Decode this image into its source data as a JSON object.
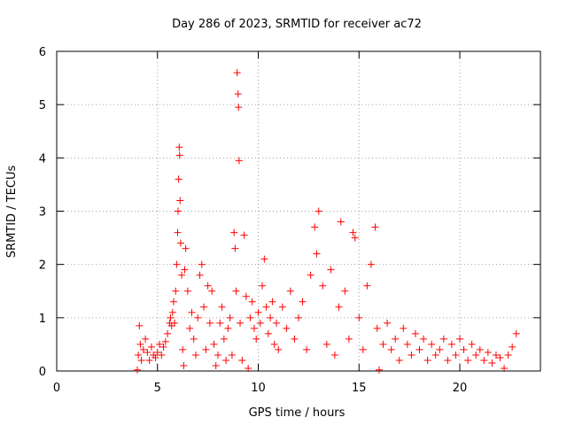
{
  "chart_data": {
    "type": "scatter",
    "title": "Day 286 of 2023, SRMTID for receiver ac72",
    "xlabel": "GPS time / hours",
    "ylabel": "SRMTID / TECUs",
    "xlim": [
      0,
      24
    ],
    "ylim": [
      0,
      6
    ],
    "xticks": [
      0,
      5,
      10,
      15,
      20
    ],
    "yticks": [
      0,
      1,
      2,
      3,
      4,
      5,
      6
    ],
    "grid": true,
    "marker": "+",
    "color": "#ff0000",
    "series": [
      {
        "name": "SRMTID",
        "points": [
          [
            4.0,
            0.02
          ],
          [
            4.05,
            0.3
          ],
          [
            4.1,
            0.85
          ],
          [
            4.15,
            0.5
          ],
          [
            4.2,
            0.2
          ],
          [
            4.3,
            0.4
          ],
          [
            4.4,
            0.6
          ],
          [
            4.5,
            0.35
          ],
          [
            4.6,
            0.2
          ],
          [
            4.7,
            0.45
          ],
          [
            4.8,
            0.3
          ],
          [
            4.9,
            0.25
          ],
          [
            5.0,
            0.35
          ],
          [
            5.1,
            0.5
          ],
          [
            5.2,
            0.3
          ],
          [
            5.3,
            0.45
          ],
          [
            5.4,
            0.55
          ],
          [
            5.5,
            0.7
          ],
          [
            5.6,
            0.9
          ],
          [
            5.65,
            1.0
          ],
          [
            5.7,
            0.85
          ],
          [
            5.75,
            1.1
          ],
          [
            5.8,
            1.3
          ],
          [
            5.85,
            0.9
          ],
          [
            5.9,
            1.5
          ],
          [
            5.95,
            2.0
          ],
          [
            6.0,
            2.6
          ],
          [
            6.02,
            3.0
          ],
          [
            6.05,
            3.6
          ],
          [
            6.08,
            4.2
          ],
          [
            6.1,
            4.05
          ],
          [
            6.12,
            3.2
          ],
          [
            6.15,
            2.4
          ],
          [
            6.2,
            1.8
          ],
          [
            6.25,
            0.4
          ],
          [
            6.3,
            0.1
          ],
          [
            6.35,
            1.9
          ],
          [
            6.4,
            2.3
          ],
          [
            6.5,
            1.5
          ],
          [
            6.6,
            0.8
          ],
          [
            6.7,
            1.1
          ],
          [
            6.8,
            0.6
          ],
          [
            6.9,
            0.3
          ],
          [
            7.0,
            1.0
          ],
          [
            7.1,
            1.8
          ],
          [
            7.2,
            2.0
          ],
          [
            7.3,
            1.2
          ],
          [
            7.4,
            0.4
          ],
          [
            7.5,
            1.6
          ],
          [
            7.6,
            0.9
          ],
          [
            7.7,
            1.5
          ],
          [
            7.8,
            0.5
          ],
          [
            7.9,
            0.1
          ],
          [
            8.0,
            0.3
          ],
          [
            8.1,
            0.9
          ],
          [
            8.2,
            1.2
          ],
          [
            8.3,
            0.6
          ],
          [
            8.4,
            0.2
          ],
          [
            8.5,
            0.8
          ],
          [
            8.6,
            1.0
          ],
          [
            8.7,
            0.3
          ],
          [
            8.8,
            2.6
          ],
          [
            8.85,
            2.3
          ],
          [
            8.9,
            1.5
          ],
          [
            8.95,
            5.6
          ],
          [
            9.0,
            5.2
          ],
          [
            9.02,
            4.95
          ],
          [
            9.05,
            3.95
          ],
          [
            9.1,
            0.9
          ],
          [
            9.2,
            0.2
          ],
          [
            9.3,
            2.55
          ],
          [
            9.4,
            1.4
          ],
          [
            9.5,
            0.05
          ],
          [
            9.6,
            1.0
          ],
          [
            9.7,
            1.3
          ],
          [
            9.8,
            0.8
          ],
          [
            9.9,
            0.6
          ],
          [
            10.0,
            1.1
          ],
          [
            10.1,
            0.9
          ],
          [
            10.2,
            1.6
          ],
          [
            10.3,
            2.1
          ],
          [
            10.4,
            1.2
          ],
          [
            10.5,
            0.7
          ],
          [
            10.6,
            1.0
          ],
          [
            10.7,
            1.3
          ],
          [
            10.8,
            0.5
          ],
          [
            10.9,
            0.9
          ],
          [
            11.0,
            0.4
          ],
          [
            11.2,
            1.2
          ],
          [
            11.4,
            0.8
          ],
          [
            11.6,
            1.5
          ],
          [
            11.8,
            0.6
          ],
          [
            12.0,
            1.0
          ],
          [
            12.2,
            1.3
          ],
          [
            12.4,
            0.4
          ],
          [
            12.6,
            1.8
          ],
          [
            12.8,
            2.7
          ],
          [
            12.9,
            2.2
          ],
          [
            13.0,
            3.0
          ],
          [
            13.2,
            1.6
          ],
          [
            13.4,
            0.5
          ],
          [
            13.6,
            1.9
          ],
          [
            13.8,
            0.3
          ],
          [
            14.0,
            1.2
          ],
          [
            14.1,
            2.8
          ],
          [
            14.3,
            1.5
          ],
          [
            14.5,
            0.6
          ],
          [
            14.7,
            2.6
          ],
          [
            14.8,
            2.5
          ],
          [
            15.0,
            1.0
          ],
          [
            15.2,
            0.4
          ],
          [
            15.4,
            1.6
          ],
          [
            15.6,
            2.0
          ],
          [
            15.8,
            2.7
          ],
          [
            15.9,
            0.8
          ],
          [
            16.0,
            0.02
          ],
          [
            16.2,
            0.5
          ],
          [
            16.4,
            0.9
          ],
          [
            16.6,
            0.4
          ],
          [
            16.8,
            0.6
          ],
          [
            17.0,
            0.2
          ],
          [
            17.2,
            0.8
          ],
          [
            17.4,
            0.5
          ],
          [
            17.6,
            0.3
          ],
          [
            17.8,
            0.7
          ],
          [
            18.0,
            0.4
          ],
          [
            18.2,
            0.6
          ],
          [
            18.4,
            0.2
          ],
          [
            18.6,
            0.5
          ],
          [
            18.8,
            0.3
          ],
          [
            19.0,
            0.4
          ],
          [
            19.2,
            0.6
          ],
          [
            19.4,
            0.2
          ],
          [
            19.6,
            0.5
          ],
          [
            19.8,
            0.3
          ],
          [
            20.0,
            0.6
          ],
          [
            20.2,
            0.4
          ],
          [
            20.4,
            0.2
          ],
          [
            20.6,
            0.5
          ],
          [
            20.8,
            0.3
          ],
          [
            21.0,
            0.4
          ],
          [
            21.2,
            0.2
          ],
          [
            21.4,
            0.35
          ],
          [
            21.6,
            0.15
          ],
          [
            21.8,
            0.3
          ],
          [
            22.0,
            0.25
          ],
          [
            22.2,
            0.05
          ],
          [
            22.4,
            0.3
          ],
          [
            22.6,
            0.45
          ],
          [
            22.8,
            0.7
          ]
        ]
      }
    ]
  }
}
